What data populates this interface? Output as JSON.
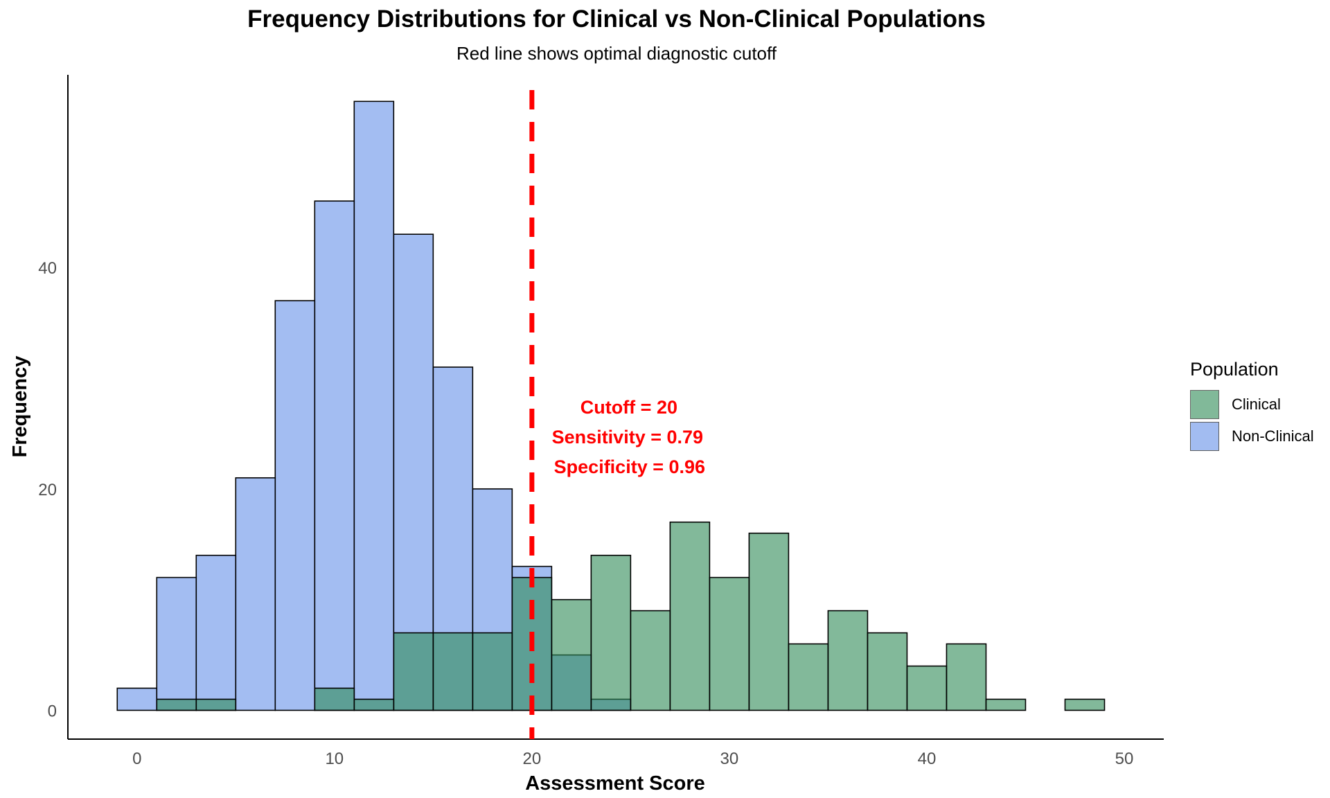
{
  "title": "Frequency Distributions for Clinical vs Non-Clinical Populations",
  "subtitle": "Red line shows optimal diagnostic cutoff",
  "chart_data": {
    "type": "bar",
    "subtype": "histogram",
    "xlabel": "Assessment Score",
    "ylabel": "Frequency",
    "xlim": [
      -3.5,
      52
    ],
    "ylim": [
      -2.6,
      57.4
    ],
    "x_ticks": [
      0,
      10,
      20,
      30,
      40,
      50
    ],
    "y_ticks": [
      0,
      20,
      40
    ],
    "bin_width": 2,
    "bin_centers": [
      0,
      2,
      4,
      6,
      8,
      10,
      12,
      14,
      16,
      18,
      20,
      22,
      24,
      26,
      28,
      30,
      32,
      34,
      36,
      38,
      40,
      42,
      44,
      46,
      48
    ],
    "series": [
      {
        "name": "Non-Clinical",
        "color": "#6d96ea",
        "values": [
          2,
          12,
          14,
          21,
          37,
          46,
          55,
          43,
          31,
          20,
          13,
          5,
          1,
          0,
          0,
          0,
          0,
          0,
          0,
          0,
          0,
          0,
          0,
          0,
          0
        ]
      },
      {
        "name": "Clinical",
        "color": "#2e8b57",
        "values": [
          0,
          1,
          1,
          0,
          0,
          2,
          1,
          7,
          7,
          7,
          12,
          10,
          14,
          9,
          17,
          12,
          16,
          6,
          9,
          7,
          4,
          6,
          1,
          0,
          1
        ]
      }
    ],
    "cutoff": {
      "value": 20,
      "color": "#ff0000",
      "style": "dashed",
      "annotations": [
        "Cutoff = 20",
        "Sensitivity = 0.79",
        "Specificity = 0.96"
      ]
    },
    "legend": {
      "title": "Population",
      "position": "right",
      "items": [
        "Clinical",
        "Non-Clinical"
      ]
    },
    "grid": false
  }
}
